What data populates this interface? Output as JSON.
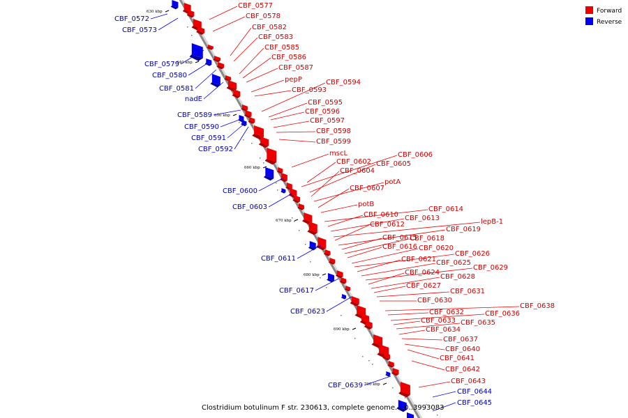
{
  "caption": "Clostridium botulinum F str. 230613, complete genome. - 0..3993083",
  "legend": {
    "items": [
      {
        "label": "Forward",
        "color": "#ee0000"
      },
      {
        "label": "Reverse",
        "color": "#0000ee"
      }
    ]
  },
  "colors": {
    "forward": "#ee0000",
    "forward_dark": "#aa0000",
    "reverse": "#0000ee",
    "reverse_dark": "#000099",
    "forward_label": "#cc0000",
    "reverse_label": "#0000aa",
    "backbone": "#888888"
  },
  "ticks": [
    "630 kbp",
    "640 kbp",
    "650 kbp",
    "660 kbp",
    "670 kbp",
    "680 kbp",
    "690 kbp",
    "700 kbp"
  ],
  "forward_genes": [
    "CBF_0577",
    "CBF_0578",
    "CBF_0582",
    "CBF_0583",
    "CBF_0585",
    "CBF_0586",
    "CBF_0587",
    "pepP",
    "CBF_0593",
    "CBF_0594",
    "CBF_0595",
    "CBF_0596",
    "CBF_0597",
    "CBF_0598",
    "CBF_0599",
    "mscL",
    "CBF_0606",
    "CBF_0602",
    "CBF_0605",
    "CBF_0604",
    "potA",
    "CBF_0607",
    "potB",
    "CBF_0614",
    "CBF_0610",
    "CBF_0613",
    "lepB-1",
    "CBF_0612",
    "CBF_0619",
    "CBF_0615",
    "CBF_0618",
    "CBF_0616",
    "CBF_0620",
    "CBF_0626",
    "CBF_0621",
    "CBF_0625",
    "CBF_0629",
    "CBF_0624",
    "CBF_0628",
    "CBF_0627",
    "CBF_0631",
    "CBF_0630",
    "CBF_0638",
    "CBF_0632",
    "CBF_0636",
    "CBF_0633",
    "CBF_0635",
    "CBF_0634",
    "CBF_0637",
    "CBF_0640",
    "CBF_0641",
    "CBF_0642",
    "CBF_0643"
  ],
  "reverse_genes": [
    "CBF_0572",
    "CBF_0573",
    "CBF_0579",
    "CBF_0580",
    "CBF_0581",
    "nadE",
    "CBF_0589",
    "CBF_0590",
    "CBF_0591",
    "CBF_0592",
    "CBF_0600",
    "CBF_0603",
    "CBF_0611",
    "CBF_0617",
    "CBF_0623",
    "CBF_0639",
    "CBF_0644",
    "CBF_0645"
  ]
}
